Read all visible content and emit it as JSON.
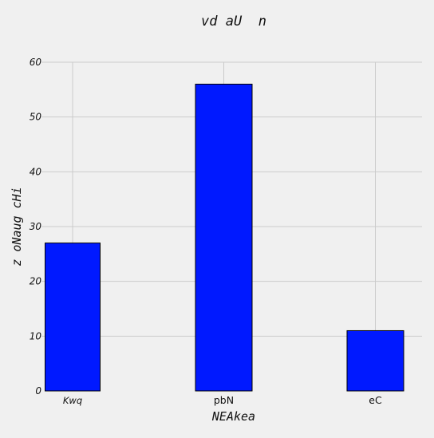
{
  "chart_data": {
    "type": "bar",
    "title": "vd aU  n",
    "xlabel": "NEAkea",
    "ylabel": "z oNaug cHi",
    "categories": [
      "Kwq",
      "pbN",
      "eC"
    ],
    "values": [
      27,
      56,
      11
    ],
    "ylim": [
      0,
      60
    ],
    "yticks": [
      "0",
      "10",
      "20",
      "30",
      "40",
      "50",
      "60"
    ],
    "grid": true,
    "bar_color": "#0019ff",
    "bar_edge_color": "#000000",
    "grid_color": "#cbcbcb",
    "background_color": "#f0f0f0"
  }
}
